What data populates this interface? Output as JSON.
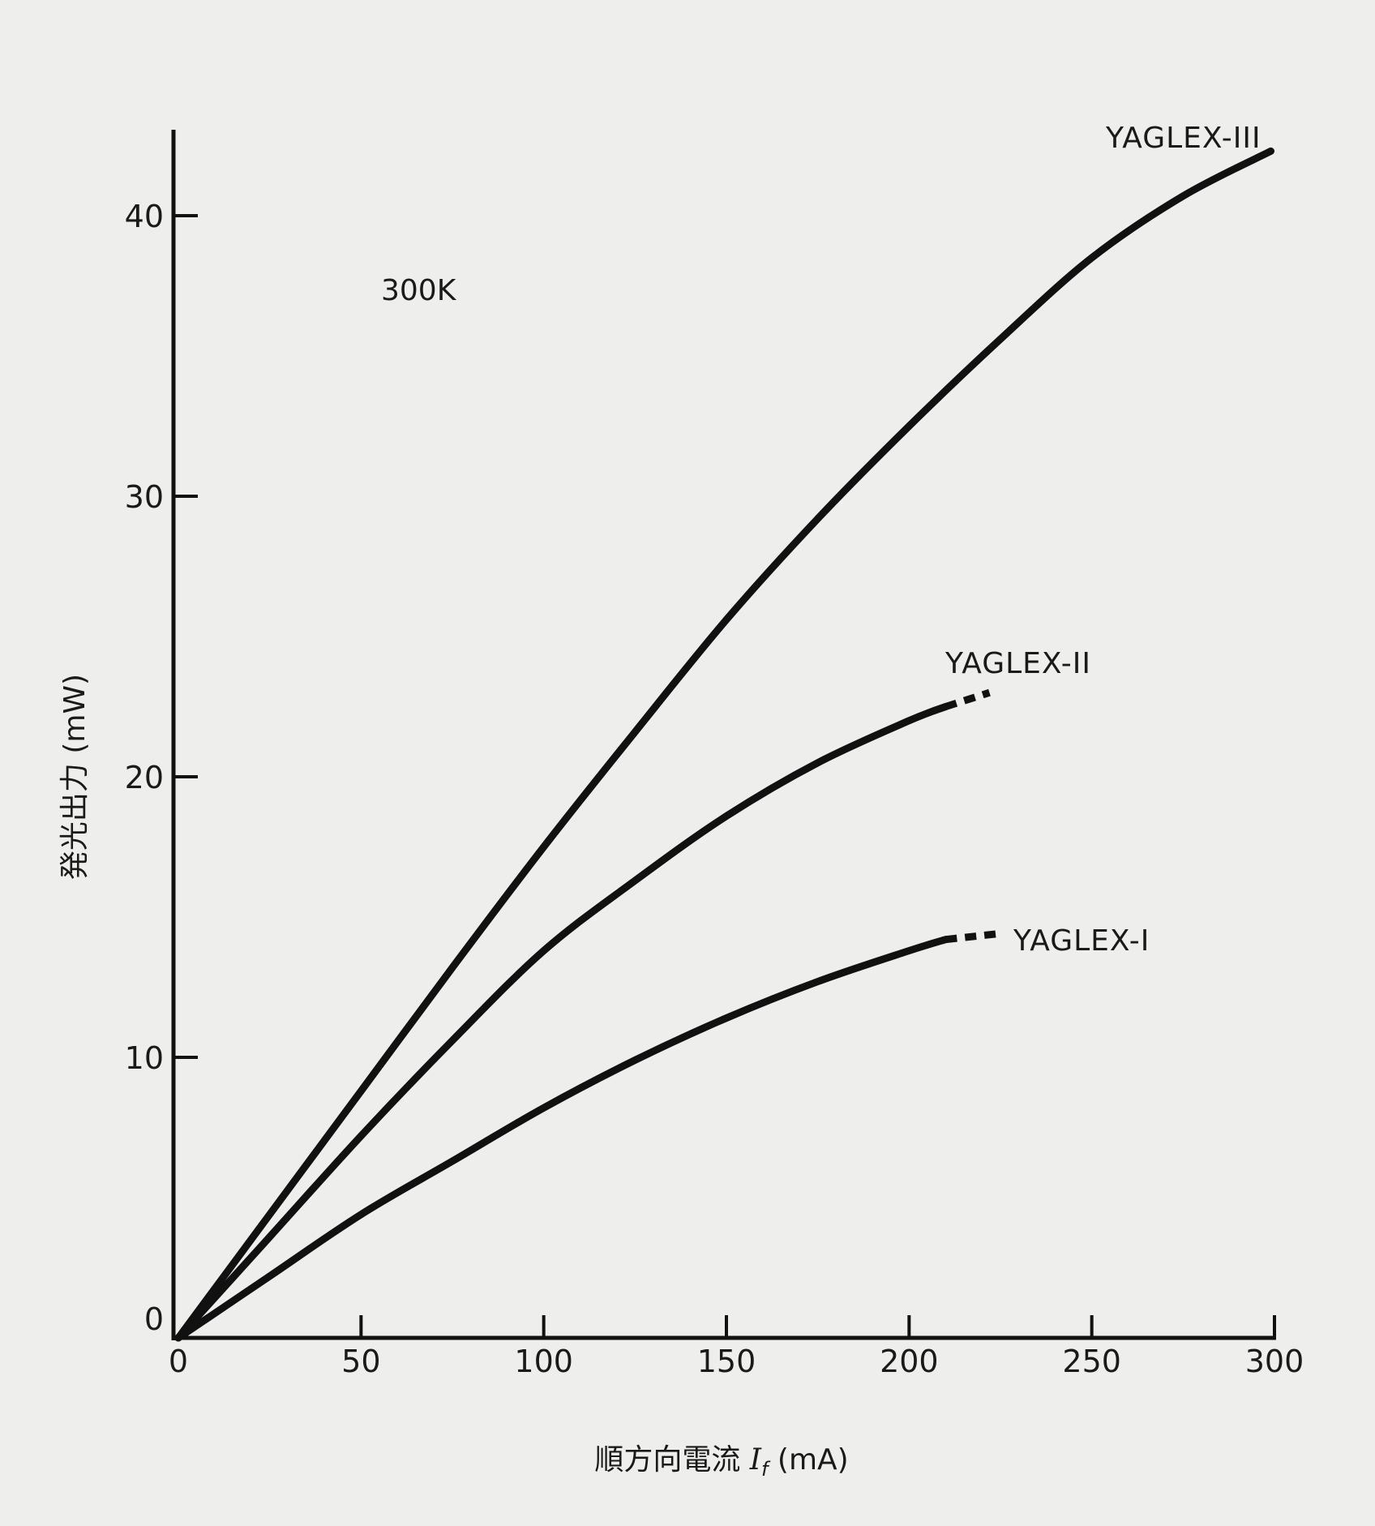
{
  "chart_data": {
    "type": "line",
    "title": "",
    "xlabel": "順方向電流",
    "xlabel_symbol": "I",
    "xlabel_subscript": "f",
    "xlabel_unit": "(mA)",
    "ylabel": "発光出力 (mW)",
    "xlim": [
      0,
      300
    ],
    "ylim": [
      0,
      40
    ],
    "x_ticks": [
      0,
      50,
      100,
      150,
      200,
      250,
      300
    ],
    "y_ticks": [
      0,
      10,
      20,
      30,
      40
    ],
    "grid": false,
    "annotation": "300K",
    "line_color": "#111111",
    "series": [
      {
        "name": "YAGLEX-III",
        "x": [
          0,
          25,
          50,
          75,
          100,
          125,
          150,
          175,
          200,
          225,
          250,
          275,
          299
        ],
        "y": [
          0,
          4.4,
          8.8,
          13.2,
          17.5,
          21.6,
          25.6,
          29.2,
          32.5,
          35.6,
          38.5,
          40.7,
          42.3
        ]
      },
      {
        "name": "YAGLEX-II",
        "x": [
          0,
          25,
          50,
          75,
          100,
          125,
          150,
          175,
          200,
          210
        ],
        "y": [
          0,
          3.6,
          7.2,
          10.6,
          13.8,
          16.3,
          18.6,
          20.5,
          22.0,
          22.5
        ],
        "dashed_extension": {
          "x": [
            210,
            222
          ],
          "y": [
            22.5,
            23.0
          ]
        }
      },
      {
        "name": "YAGLEX-I",
        "x": [
          0,
          25,
          50,
          75,
          100,
          125,
          150,
          175,
          200,
          210
        ],
        "y": [
          0,
          2.2,
          4.4,
          6.3,
          8.2,
          9.9,
          11.4,
          12.7,
          13.8,
          14.2
        ],
        "dashed_extension": {
          "x": [
            210,
            224
          ],
          "y": [
            14.2,
            14.4
          ]
        }
      }
    ]
  }
}
